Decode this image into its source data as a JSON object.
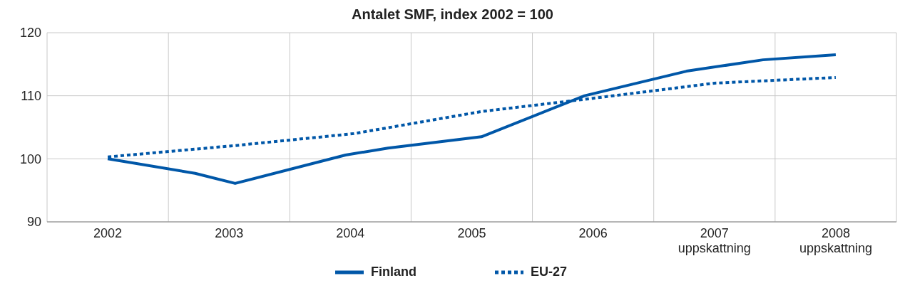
{
  "chart_data": {
    "type": "line",
    "title": "Antalet SMF, index 2002 = 100",
    "xlim": [
      2001.5,
      2008.5
    ],
    "xticks": [
      {
        "value": 2001.5,
        "label": null
      },
      2002,
      {
        "value": 2002.5,
        "label": null
      },
      2003,
      {
        "value": 2003.5,
        "label": null
      },
      2004,
      {
        "value": 2004.5,
        "label": null
      },
      2005,
      {
        "value": 2005.5,
        "label": null
      },
      2006,
      {
        "value": 2006.5,
        "label": null
      },
      {
        "value": 2007,
        "label": "2007\nuppskattning"
      },
      {
        "value": 2007.5,
        "label": null
      },
      {
        "value": 2008,
        "label": "2008\nuppskattning"
      },
      {
        "value": 2008.5,
        "label": null
      }
    ],
    "ylim": [
      90,
      120
    ],
    "yticks": [
      90,
      100,
      110,
      120
    ],
    "grid": true,
    "legend": "bottom",
    "series": [
      {
        "name": "Finland",
        "color": "#0057a8",
        "line_style": "solid",
        "x": [
          2002,
          2002.72,
          2003.05,
          2003.96,
          2004.31,
          2005.08,
          2005.93,
          2006.77,
          2007.4,
          2008
        ],
        "values": [
          100,
          97.7,
          96.1,
          100.6,
          101.7,
          103.5,
          110,
          113.9,
          115.7,
          116.5
        ]
      },
      {
        "name": "EU-27",
        "color": "#0057a8",
        "line_style": "dotted",
        "x": [
          2002,
          2003.05,
          2004.03,
          2005.08,
          2006,
          2007,
          2008
        ],
        "values": [
          100.3,
          102.1,
          104,
          107.5,
          109.6,
          112,
          112.9
        ]
      }
    ]
  }
}
